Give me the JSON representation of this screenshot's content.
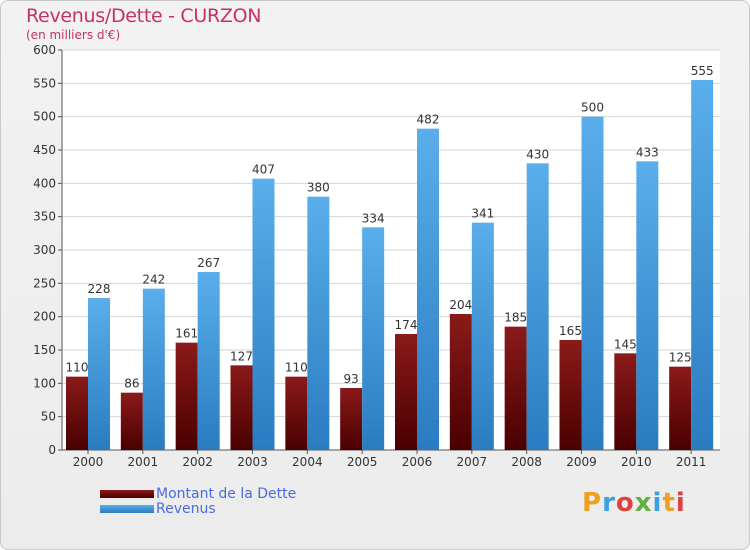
{
  "colors": {
    "title": "#c8306a",
    "debt_top": "#8b1a1a",
    "debt_bottom": "#4a0000",
    "revenue_top": "#5aaeea",
    "revenue_bottom": "#2a7cc0",
    "legend_text": "#4a6ae0"
  },
  "brand": {
    "logo_text": "Proxiti"
  },
  "chart_data": {
    "type": "bar",
    "title": "Revenus/Dette - CURZON",
    "subtitle": "(en milliers d'€)",
    "categories": [
      "2000",
      "2001",
      "2002",
      "2003",
      "2004",
      "2005",
      "2006",
      "2007",
      "2008",
      "2009",
      "2010",
      "2011"
    ],
    "series": [
      {
        "name": "Montant de la Dette",
        "values": [
          110,
          86,
          161,
          127,
          110,
          93,
          174,
          204,
          185,
          165,
          145,
          125
        ]
      },
      {
        "name": "Revenus",
        "values": [
          228,
          242,
          267,
          407,
          380,
          334,
          482,
          341,
          430,
          500,
          433,
          555
        ]
      }
    ],
    "ylim": [
      0,
      600
    ],
    "yticks": [
      0,
      50,
      100,
      150,
      200,
      250,
      300,
      350,
      400,
      450,
      500,
      550,
      600
    ],
    "grid": true,
    "legend_position": "bottom-left",
    "data_labels": true
  }
}
